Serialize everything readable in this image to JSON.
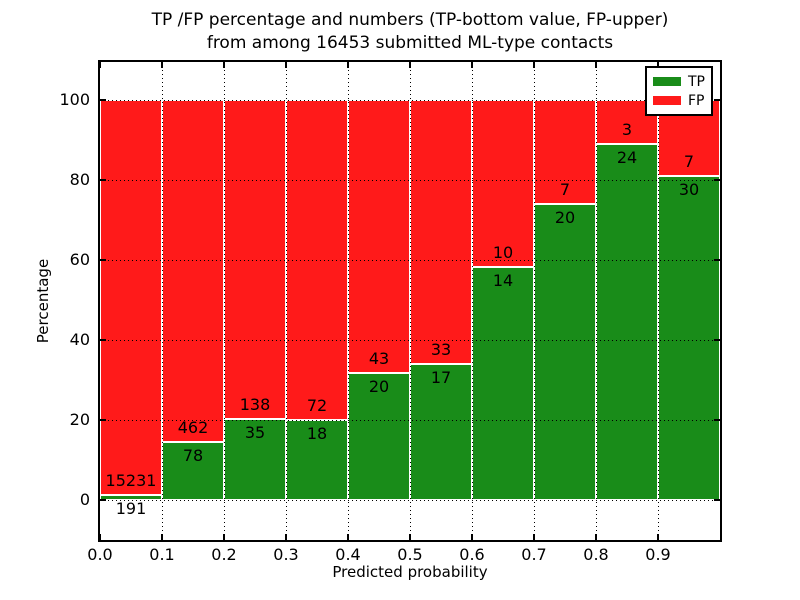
{
  "figure": {
    "title_line1": "TP /FP percentage and numbers (TP-bottom value, FP-upper)",
    "title_line2": "from among 16453 submitted ML-type contacts",
    "xlabel": "Predicted probability",
    "ylabel": "Percentage"
  },
  "legend": {
    "position": "upper right",
    "entries": [
      {
        "label": "TP",
        "color": "#198c19"
      },
      {
        "label": "FP",
        "color": "#ff1a1a"
      }
    ]
  },
  "chart_data": {
    "type": "bar",
    "subtype": "stacked-percentage-histogram",
    "title": "TP /FP percentage and numbers (TP-bottom value, FP-upper) from among 16453 submitted ML-type contacts",
    "xlabel": "Predicted probability",
    "ylabel": "Percentage",
    "total_contacts": 16453,
    "categories": [
      "0.0-0.1",
      "0.1-0.2",
      "0.2-0.3",
      "0.3-0.4",
      "0.4-0.5",
      "0.5-0.6",
      "0.6-0.7",
      "0.7-0.8",
      "0.8-0.9",
      "0.9-1.0"
    ],
    "bin_start": [
      0.0,
      0.1,
      0.2,
      0.3,
      0.4,
      0.5,
      0.6,
      0.7,
      0.8,
      0.9
    ],
    "bin_width": 0.1,
    "series": [
      {
        "name": "TP",
        "color": "#198c19",
        "values": [
          191,
          78,
          35,
          18,
          20,
          17,
          14,
          20,
          24,
          30
        ]
      },
      {
        "name": "FP",
        "color": "#ff1a1a",
        "values": [
          15231,
          462,
          138,
          72,
          43,
          33,
          10,
          7,
          3,
          7
        ]
      }
    ],
    "tp_percent_of_bin": [
      1.24,
      14.44,
      20.23,
      20.0,
      31.75,
      34.0,
      58.33,
      74.07,
      88.89,
      81.08
    ],
    "x_tick_labels": [
      "0.0",
      "0.1",
      "0.2",
      "0.3",
      "0.4",
      "0.5",
      "0.6",
      "0.7",
      "0.8",
      "0.9"
    ],
    "y_tick_values": [
      0,
      20,
      40,
      60,
      80,
      100
    ],
    "y_tick_labels": [
      "0",
      "20",
      "40",
      "60",
      "80",
      "100"
    ],
    "xlim": [
      0.0,
      1.0
    ],
    "ylim": [
      -10,
      110
    ],
    "grid": true,
    "grid_style": "dotted-black-on-top",
    "legend_position": "upper right"
  }
}
